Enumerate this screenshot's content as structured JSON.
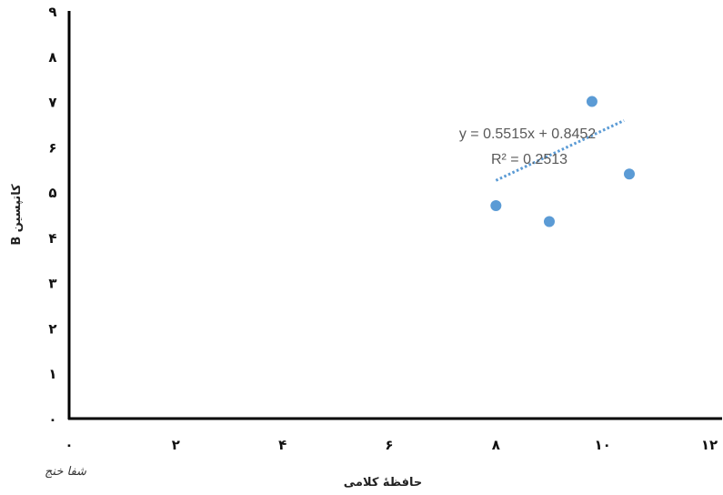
{
  "chart_data": {
    "type": "scatter",
    "xlabel": "حافظهٔ کلامی",
    "ylabel": "کاتپسین B",
    "xlim": [
      0,
      12
    ],
    "ylim": [
      0,
      9
    ],
    "x_ticks": [
      0,
      2,
      4,
      6,
      8,
      10,
      12
    ],
    "x_tick_labels": [
      "۰",
      "۲",
      "۴",
      "۶",
      "۸",
      "۱۰",
      "۱۲"
    ],
    "y_ticks": [
      0,
      1,
      2,
      3,
      4,
      5,
      6,
      7,
      8,
      9
    ],
    "y_tick_labels": [
      "۰",
      "۱",
      "۲",
      "۳",
      "۴",
      "۵",
      "۶",
      "۷",
      "۸",
      "۹"
    ],
    "grid": false,
    "series": [
      {
        "points": [
          {
            "x": 8.0,
            "y": 4.7
          },
          {
            "x": 9.0,
            "y": 4.35
          },
          {
            "x": 9.8,
            "y": 7.0
          },
          {
            "x": 10.5,
            "y": 5.4
          }
        ],
        "color": "#5b9bd5"
      }
    ],
    "trendline": {
      "type": "linear",
      "slope": 0.5515,
      "intercept": 0.8452,
      "x_range": [
        8.0,
        10.4
      ],
      "style": "dotted",
      "color": "#5b9bd5",
      "equation": "y = 0.5515x + 0.8452",
      "r_squared": "R² = 0.2513"
    }
  },
  "watermark": {
    "text": "شفا خنج"
  }
}
